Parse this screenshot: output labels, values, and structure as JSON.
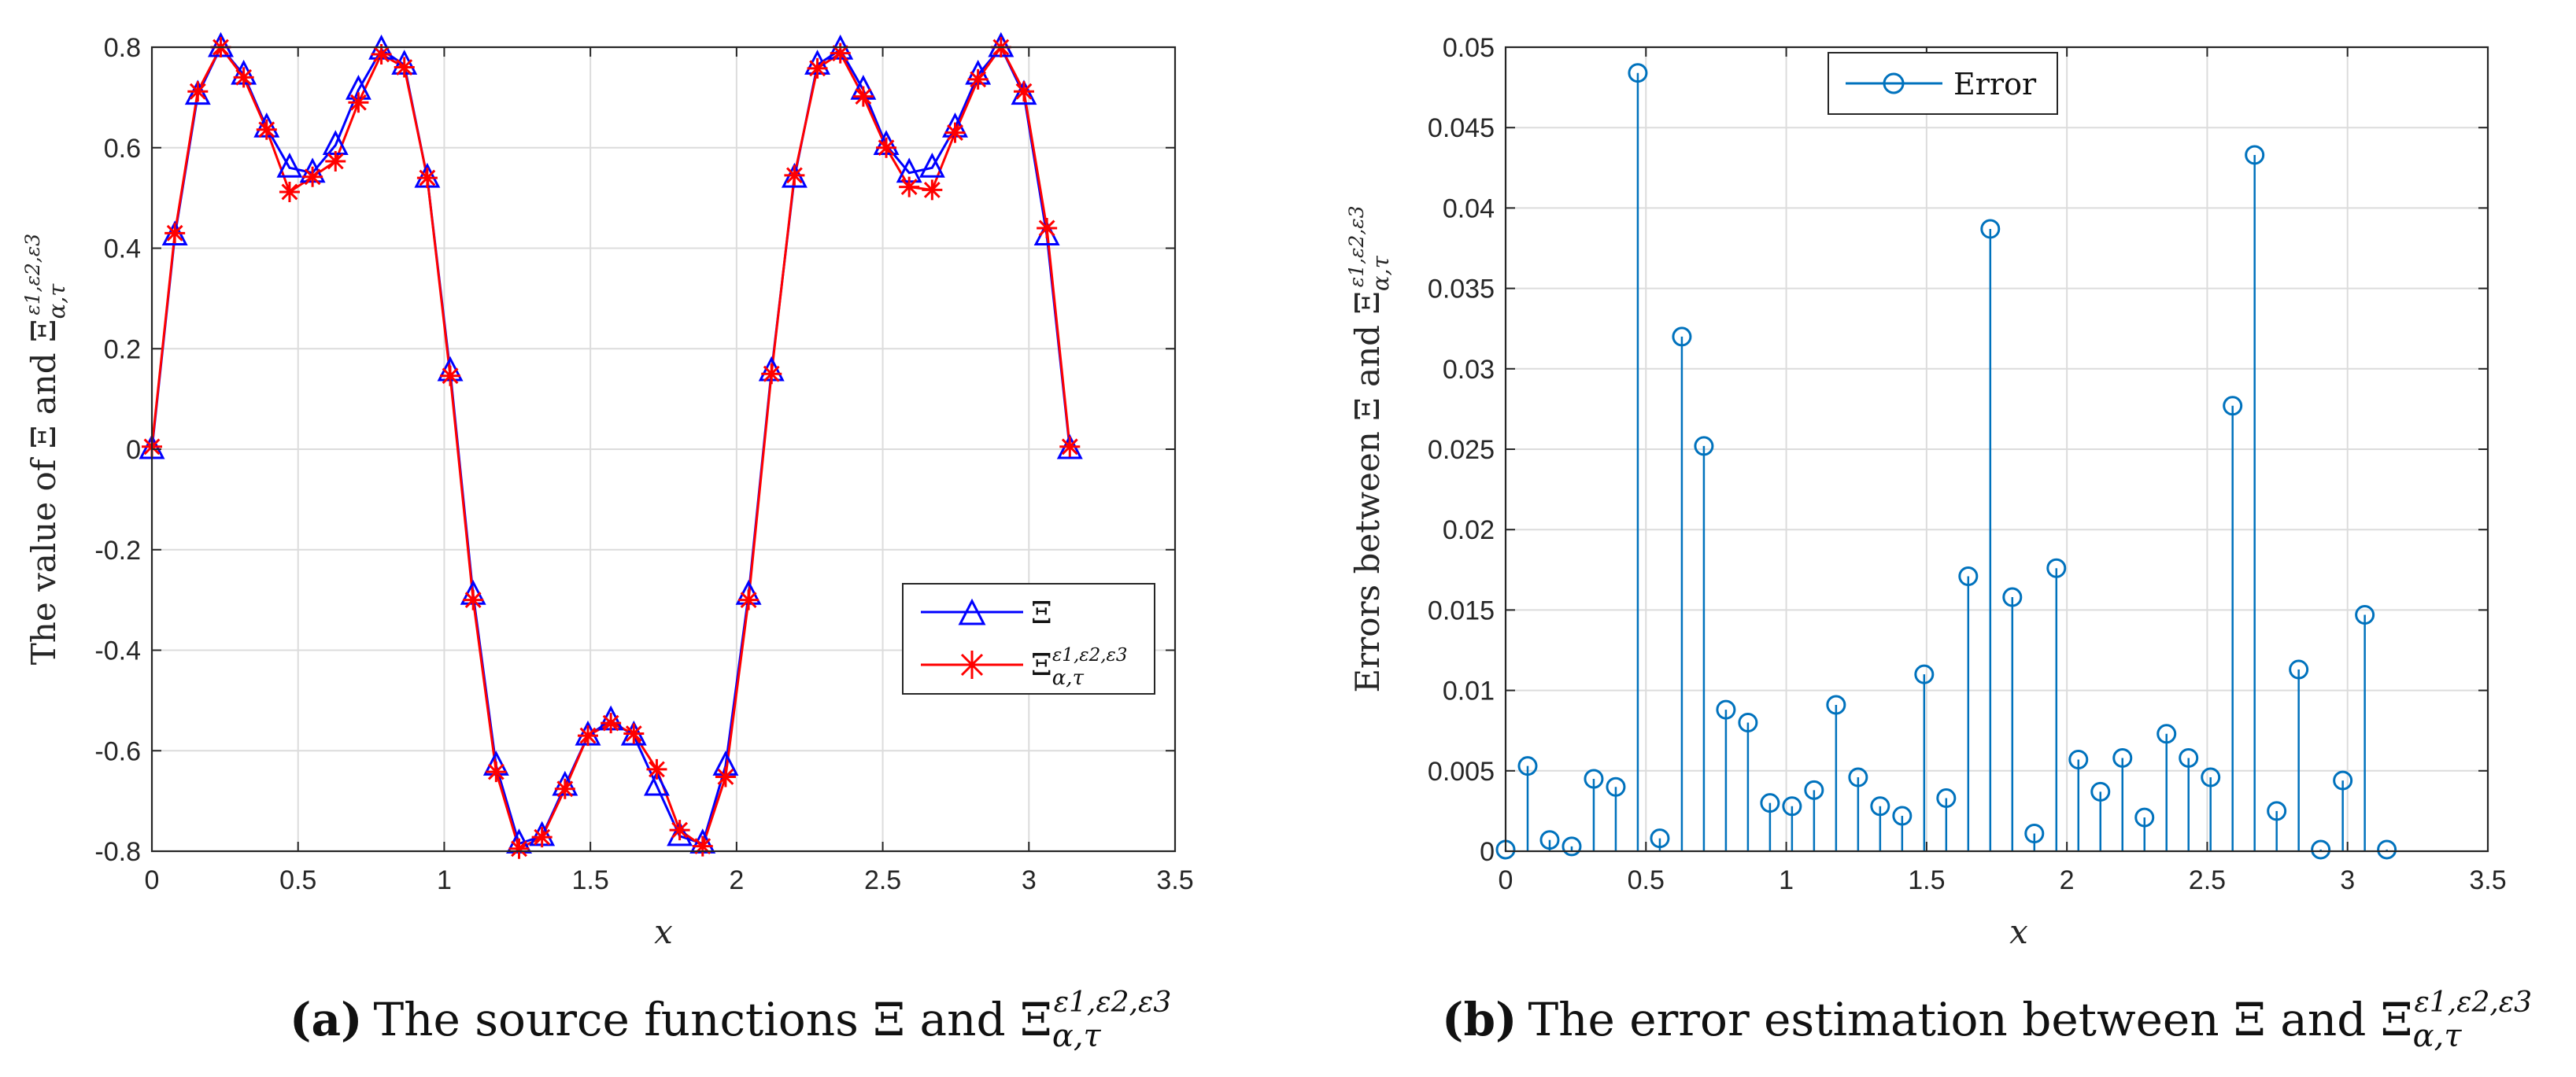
{
  "chart_data": [
    {
      "type": "line",
      "panel": "a",
      "caption_label": "(a)",
      "caption_text": "The source functions Ξ and Ξ",
      "caption_sub": "α,τ",
      "caption_sup": "ε1,ε2,ε3",
      "xlabel": "x",
      "ylabel": "The value of Ξ and Ξ",
      "ylabel_sub": "α,τ",
      "ylabel_sup": "ε1,ε2,ε3",
      "xlim": [
        0,
        3.5
      ],
      "ylim": [
        -0.8,
        0.8
      ],
      "xticks": [
        0,
        0.5,
        1,
        1.5,
        2,
        2.5,
        3,
        3.5
      ],
      "xtick_labels": [
        "0",
        "0.5",
        "1",
        "1.5",
        "2",
        "2.5",
        "3",
        "3.5"
      ],
      "yticks": [
        -0.8,
        -0.6,
        -0.4,
        -0.2,
        0,
        0.2,
        0.4,
        0.6,
        0.8
      ],
      "ytick_labels": [
        "-0.8",
        "-0.6",
        "-0.4",
        "-0.2",
        "0",
        "0.2",
        "0.4",
        "0.6",
        "0.8"
      ],
      "grid": true,
      "legend_position": "right-middle",
      "x": [
        0,
        0.0785,
        0.157,
        0.2355,
        0.314,
        0.3925,
        0.471,
        0.5495,
        0.628,
        0.7065,
        0.785,
        0.8635,
        0.942,
        1.0205,
        1.099,
        1.1775,
        1.256,
        1.3345,
        1.413,
        1.4915,
        1.57,
        1.6485,
        1.727,
        1.8055,
        1.884,
        1.9625,
        2.041,
        2.1195,
        2.198,
        2.2765,
        2.355,
        2.4335,
        2.512,
        2.5905,
        2.669,
        2.7475,
        2.826,
        2.9045,
        2.983,
        3.0615,
        3.14
      ],
      "series": [
        {
          "name": "Ξ",
          "color": "#0000ff",
          "marker": "triangle",
          "values": [
            0,
            0.425,
            0.705,
            0.8,
            0.745,
            0.64,
            0.56,
            0.55,
            0.605,
            0.715,
            0.795,
            0.765,
            0.54,
            0.155,
            -0.29,
            -0.63,
            -0.785,
            -0.77,
            -0.67,
            -0.57,
            -0.54,
            -0.57,
            -0.67,
            -0.77,
            -0.785,
            -0.63,
            -0.29,
            0.155,
            0.54,
            0.765,
            0.795,
            0.715,
            0.605,
            0.55,
            0.56,
            0.64,
            0.745,
            0.8,
            0.705,
            0.425,
            0
          ]
        },
        {
          "name": "Ξ",
          "sub": "α,τ",
          "sup": "ε1,ε2,ε3",
          "color": "#ff0000",
          "marker": "asterisk",
          "values": [
            0.005,
            0.43,
            0.712,
            0.8,
            0.74,
            0.636,
            0.512,
            0.542,
            0.573,
            0.69,
            0.786,
            0.76,
            0.54,
            0.146,
            -0.3,
            -0.642,
            -0.795,
            -0.772,
            -0.676,
            -0.57,
            -0.545,
            -0.566,
            -0.637,
            -0.758,
            -0.79,
            -0.652,
            -0.3,
            0.15,
            0.545,
            0.758,
            0.788,
            0.702,
            0.6,
            0.522,
            0.516,
            0.63,
            0.736,
            0.8,
            0.712,
            0.44,
            0.005
          ]
        }
      ]
    },
    {
      "type": "stem",
      "panel": "b",
      "caption_label": "(b)",
      "caption_text": "The error estimation between Ξ and Ξ",
      "caption_sub": "α,τ",
      "caption_sup": "ε1,ε2,ε3",
      "xlabel": "x",
      "ylabel": "Errors between Ξ and Ξ",
      "ylabel_sub": "α,τ",
      "ylabel_sup": "ε1,ε2,ε3",
      "xlim": [
        0,
        3.5
      ],
      "ylim": [
        0,
        0.05
      ],
      "xticks": [
        0,
        0.5,
        1,
        1.5,
        2,
        2.5,
        3,
        3.5
      ],
      "xtick_labels": [
        "0",
        "0.5",
        "1",
        "1.5",
        "2",
        "2.5",
        "3",
        "3.5"
      ],
      "yticks": [
        0,
        0.005,
        0.01,
        0.015,
        0.02,
        0.025,
        0.03,
        0.035,
        0.04,
        0.045,
        0.05
      ],
      "ytick_labels": [
        "0",
        "0.005",
        "0.01",
        "0.015",
        "0.02",
        "0.025",
        "0.03",
        "0.035",
        "0.04",
        "0.045",
        "0.05"
      ],
      "grid": true,
      "legend_position": "top-left",
      "series": [
        {
          "name": "Error",
          "color": "#0072bd",
          "marker": "circle",
          "x": [
            0,
            0.0785,
            0.157,
            0.2355,
            0.314,
            0.3925,
            0.471,
            0.5495,
            0.628,
            0.7065,
            0.785,
            0.8635,
            0.942,
            1.0205,
            1.099,
            1.1775,
            1.256,
            1.3345,
            1.413,
            1.4915,
            1.57,
            1.6485,
            1.727,
            1.8055,
            1.884,
            1.9625,
            2.041,
            2.1195,
            2.198,
            2.2765,
            2.355,
            2.4335,
            2.512,
            2.5905,
            2.669,
            2.7475,
            2.826,
            2.9045,
            2.983,
            3.0615,
            3.14
          ],
          "values": [
            0.0001,
            0.0053,
            0.0007,
            0.0003,
            0.0045,
            0.004,
            0.0484,
            0.0008,
            0.032,
            0.0252,
            0.0088,
            0.008,
            0.003,
            0.0028,
            0.0038,
            0.0091,
            0.0046,
            0.0028,
            0.0022,
            0.011,
            0.0033,
            0.0171,
            0.0387,
            0.0158,
            0.0011,
            0.0176,
            0.0057,
            0.0037,
            0.0058,
            0.0021,
            0.0073,
            0.0058,
            0.0046,
            0.0277,
            0.0433,
            0.0025,
            0.0113,
            0.0001,
            0.0044,
            0.0147,
            0.0001
          ]
        }
      ]
    }
  ]
}
